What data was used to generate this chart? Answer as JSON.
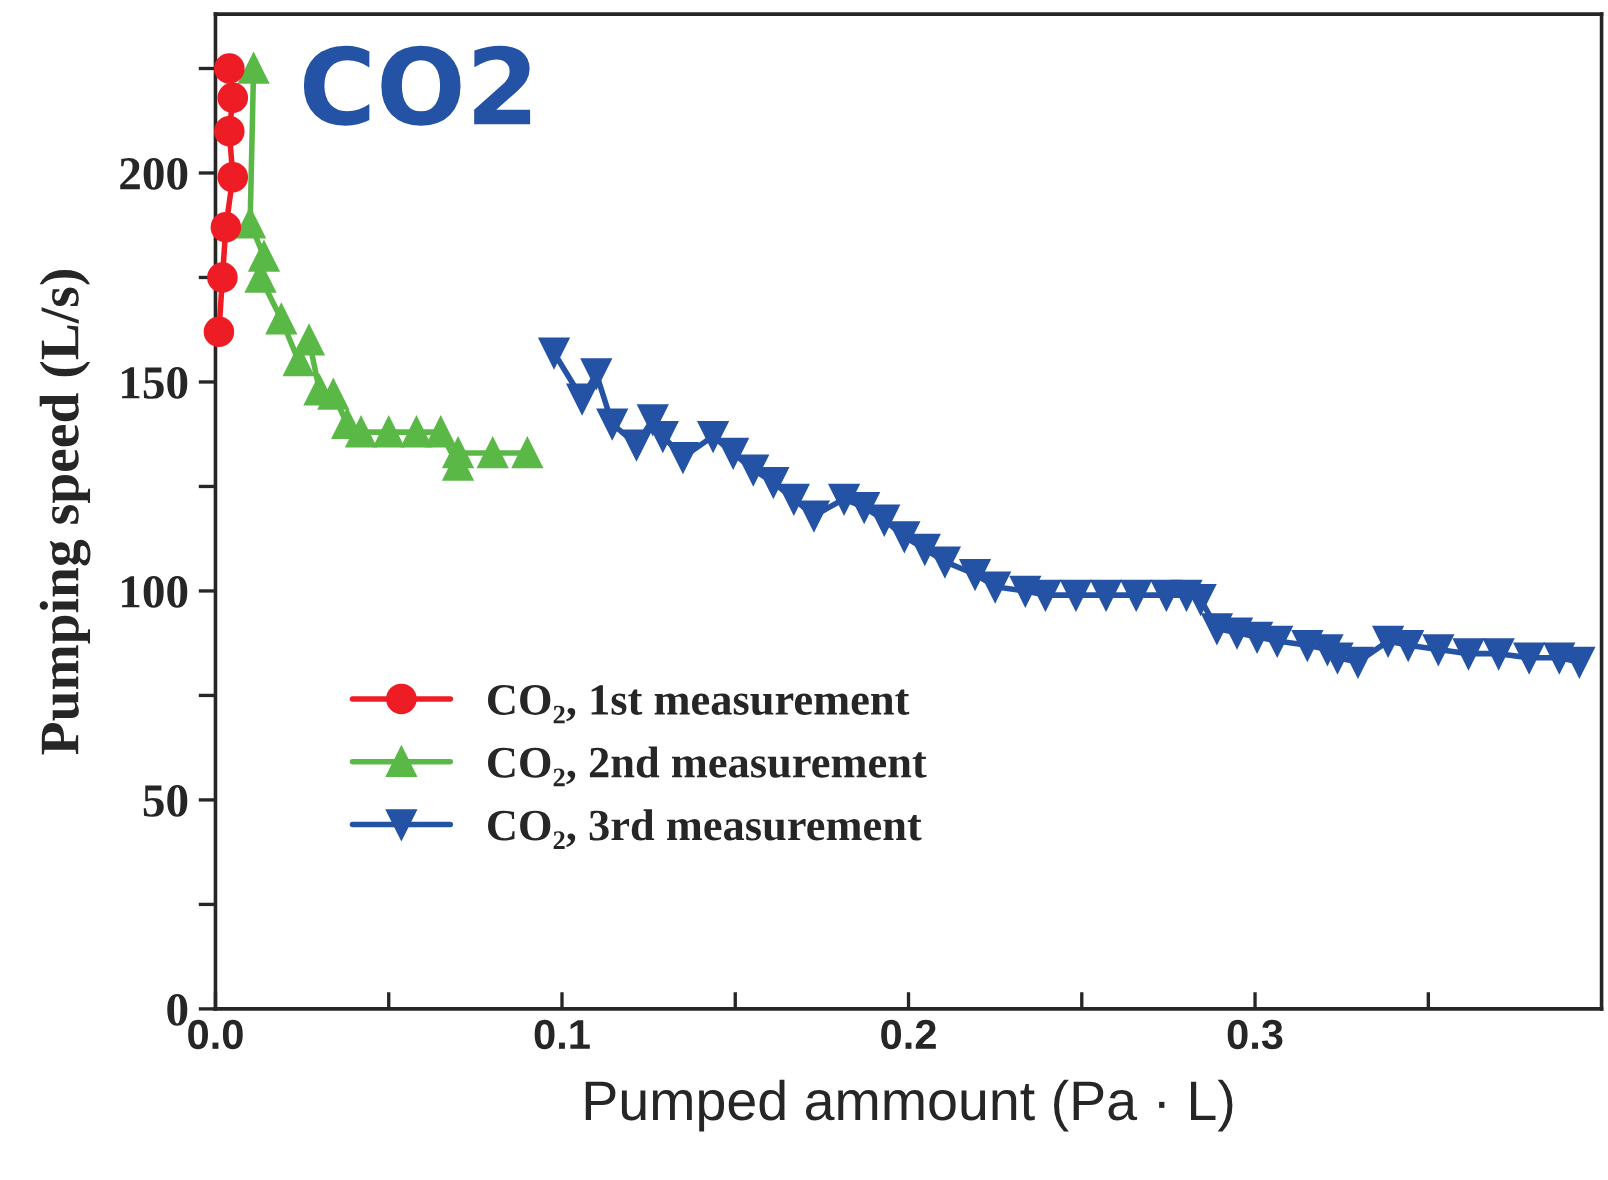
{
  "chart_data": {
    "type": "line",
    "xlabel": "Pumped ammount (Pa · L)",
    "ylabel": "Pumping speed (L/s)",
    "annotations": [
      "CO2"
    ],
    "xlim": [
      0,
      0.4
    ],
    "ylim": [
      0,
      238
    ],
    "xticks": [
      {
        "value": 0,
        "label": "0.0"
      },
      {
        "value": 0.05,
        "label": null
      },
      0.1,
      {
        "value": 0.15,
        "label": null
      },
      0.2,
      {
        "value": 0.25,
        "label": null
      },
      0.3,
      {
        "value": 0.35,
        "label": null
      }
    ],
    "yticks": [
      0,
      {
        "value": 25,
        "label": null
      },
      50,
      {
        "value": 75,
        "label": null
      },
      100,
      {
        "value": 125,
        "label": null
      },
      150,
      {
        "value": 175,
        "label": null
      },
      200,
      {
        "value": 225,
        "label": null
      }
    ],
    "grid": false,
    "legend": "lower left",
    "line_style": "solid",
    "series": [
      {
        "name": "CO₂, 1st measurement",
        "color": "#ee1c25",
        "marker": "circle",
        "x": [
          0.001,
          0.002,
          0.003,
          0.005,
          0.004,
          0.005,
          0.004
        ],
        "values": [
          162,
          175,
          187,
          199,
          210,
          218,
          225
        ]
      },
      {
        "name": "CO₂, 2nd measurement",
        "color": "#5ab946",
        "marker": "triangle",
        "x": [
          0.011,
          0.01,
          0.014,
          0.013,
          0.019,
          0.024,
          0.027,
          0.03,
          0.034,
          0.038,
          0.042,
          0.05,
          0.058,
          0.065,
          0.07,
          0.07,
          0.08,
          0.09
        ],
        "values": [
          225,
          188,
          180,
          175,
          165,
          155,
          160,
          148,
          147,
          140,
          138,
          138,
          138,
          138,
          130,
          133,
          133,
          133
        ]
      },
      {
        "name": "CO₂, 3rd measurement",
        "color": "#2452a4",
        "marker": "triangle_down",
        "x": [
          0.0977,
          0.1058,
          0.1099,
          0.1145,
          0.1215,
          0.1262,
          0.1291,
          0.1349,
          0.1436,
          0.1494,
          0.1552,
          0.161,
          0.1669,
          0.1727,
          0.1814,
          0.1872,
          0.193,
          0.1988,
          0.2047,
          0.2105,
          0.2192,
          0.225,
          0.2337,
          0.2395,
          0.2483,
          0.257,
          0.2657,
          0.2744,
          0.2802,
          0.2843,
          0.289,
          0.2948,
          0.3006,
          0.3064,
          0.3151,
          0.3209,
          0.3238,
          0.3297,
          0.3384,
          0.3442,
          0.3529,
          0.3616,
          0.3703,
          0.3791,
          0.3878,
          0.3936
        ],
        "values": [
          157,
          146,
          152,
          140,
          135,
          141,
          137,
          132,
          137,
          133,
          129,
          126,
          122,
          118,
          122,
          120,
          117,
          113,
          110,
          107,
          104,
          101,
          100,
          99,
          99,
          99,
          99,
          99,
          99,
          98,
          91,
          90,
          89,
          88,
          87,
          86,
          84,
          83,
          88,
          87,
          86,
          85,
          85,
          84,
          84,
          83
        ]
      }
    ]
  }
}
